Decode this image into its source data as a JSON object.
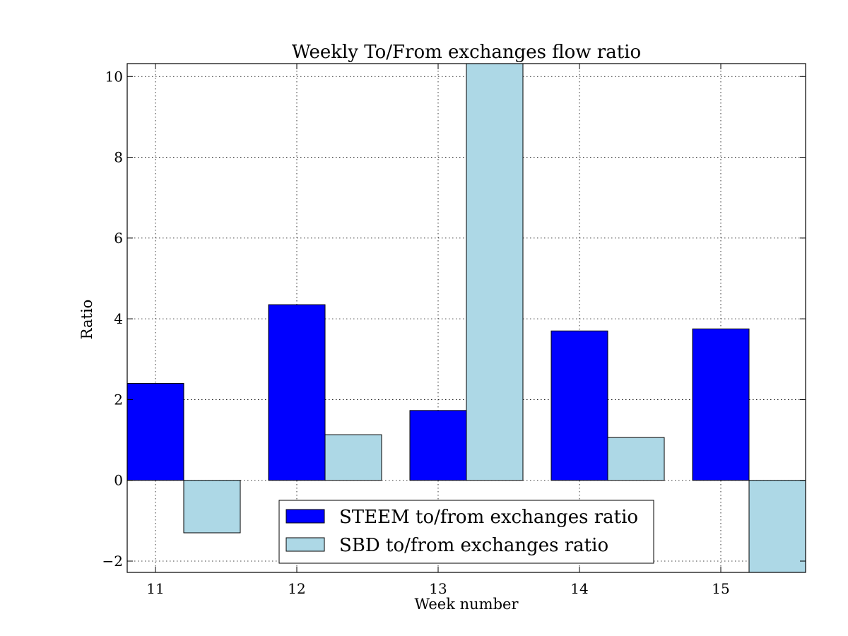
{
  "chart_data": {
    "type": "bar",
    "title": "Weekly To/From exchanges flow ratio",
    "xlabel": "Week number",
    "ylabel": "Ratio",
    "categories": [
      "11",
      "12",
      "13",
      "14",
      "15"
    ],
    "x": [
      11,
      12,
      13,
      14,
      15
    ],
    "xlim": [
      10.8,
      15.6
    ],
    "ylim": [
      -2.28,
      10.32
    ],
    "yticks": [
      -2,
      0,
      2,
      4,
      6,
      8,
      10
    ],
    "ytick_labels": [
      "−2",
      "0",
      "2",
      "4",
      "6",
      "8",
      "10"
    ],
    "grid": true,
    "legend_position": "lower-center",
    "series": [
      {
        "name": "STEEM to/from exchanges ratio",
        "color": "#0000ff",
        "values": [
          2.4,
          4.35,
          1.73,
          3.7,
          3.75
        ]
      },
      {
        "name": "SBD to/from exchanges ratio",
        "color": "#add8e6",
        "values": [
          -1.3,
          1.13,
          10.32,
          1.06,
          -2.28
        ]
      }
    ]
  }
}
